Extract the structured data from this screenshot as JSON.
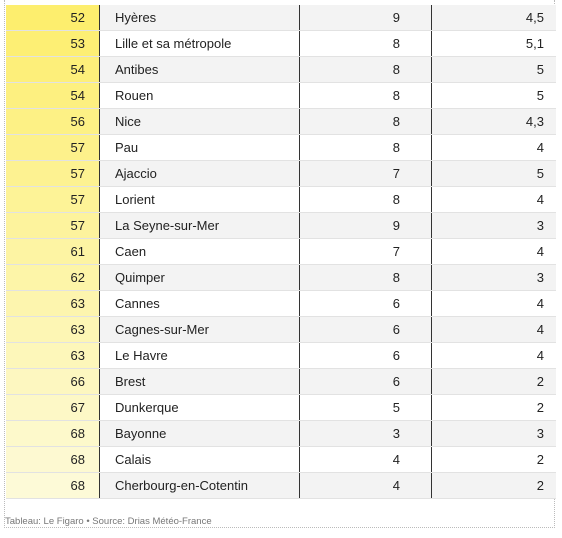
{
  "table": {
    "rows": [
      [
        "52",
        "Hyères",
        "9",
        "4,5"
      ],
      [
        "53",
        "Lille et sa métropole",
        "8",
        "5,1"
      ],
      [
        "54",
        "Antibes",
        "8",
        "5"
      ],
      [
        "54",
        "Rouen",
        "8",
        "5"
      ],
      [
        "56",
        "Nice",
        "8",
        "4,3"
      ],
      [
        "57",
        "Pau",
        "8",
        "4"
      ],
      [
        "57",
        "Ajaccio",
        "7",
        "5"
      ],
      [
        "57",
        "Lorient",
        "8",
        "4"
      ],
      [
        "57",
        "La Seyne-sur-Mer",
        "9",
        "3"
      ],
      [
        "61",
        "Caen",
        "7",
        "4"
      ],
      [
        "62",
        "Quimper",
        "8",
        "3"
      ],
      [
        "63",
        "Cannes",
        "6",
        "4"
      ],
      [
        "63",
        "Cagnes-sur-Mer",
        "6",
        "4"
      ],
      [
        "63",
        "Le Havre",
        "6",
        "4"
      ],
      [
        "66",
        "Brest",
        "6",
        "2"
      ],
      [
        "67",
        "Dunkerque",
        "5",
        "2"
      ],
      [
        "68",
        "Bayonne",
        "3",
        "3"
      ],
      [
        "68",
        "Calais",
        "4",
        "2"
      ],
      [
        "68",
        "Cherbourg-en-Cotentin",
        "4",
        "2"
      ]
    ]
  },
  "footer": "Tableau: Le Figaro • Source: Drias Météo-France"
}
